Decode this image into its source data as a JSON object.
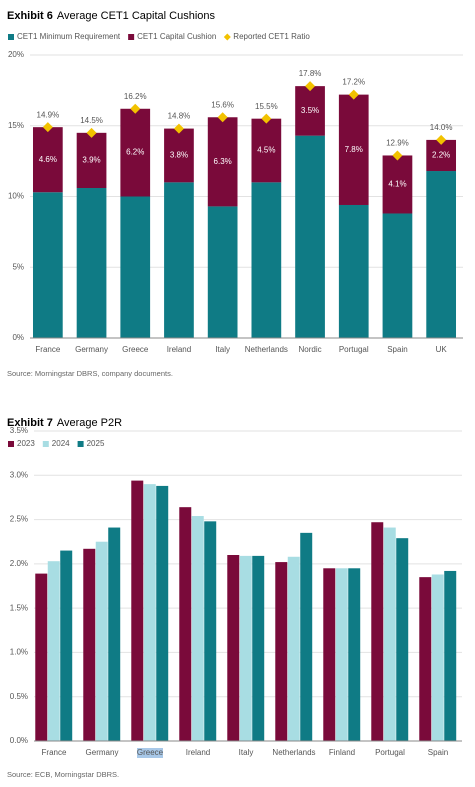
{
  "chart_data": [
    {
      "type": "bar",
      "stacked": true,
      "title_label": "Exhibit 6",
      "title": "Average CET1 Capital Cushions",
      "source": "Source: Morningstar DBRS, company documents.",
      "categories": [
        "France",
        "Germany",
        "Greece",
        "Ireland",
        "Italy",
        "Netherlands",
        "Nordic",
        "Portugal",
        "Spain",
        "UK"
      ],
      "series": [
        {
          "name": "CET1 Minimum Requirement",
          "color": "#0f7b85",
          "values": [
            10.3,
            10.6,
            10.0,
            11.0,
            9.3,
            11.0,
            14.3,
            9.4,
            8.8,
            11.8
          ]
        },
        {
          "name": "CET1 Capital Cushion",
          "color": "#7a0a3a",
          "values": [
            4.6,
            3.9,
            6.2,
            3.8,
            6.3,
            4.5,
            3.5,
            7.8,
            4.1,
            2.2
          ],
          "value_labels": [
            "4.6%",
            "3.9%",
            "6.2%",
            "3.8%",
            "6.3%",
            "4.5%",
            "3.5%",
            "7.8%",
            "4.1%",
            "2.2%"
          ]
        },
        {
          "name": "Reported CET1 Ratio",
          "type": "marker",
          "color": "#f2c200",
          "values": [
            14.9,
            14.5,
            16.2,
            14.8,
            15.6,
            15.5,
            17.8,
            17.2,
            12.9,
            14.0
          ],
          "value_labels": [
            "14.9%",
            "14.5%",
            "16.2%",
            "14.8%",
            "15.6%",
            "15.5%",
            "17.8%",
            "17.2%",
            "12.9%",
            "14.0%"
          ]
        }
      ],
      "ylim": [
        0,
        20
      ],
      "yticks": [
        {
          "value": 0,
          "label": "0%"
        },
        {
          "value": 5,
          "label": "5%"
        },
        {
          "value": 10,
          "label": "10%"
        },
        {
          "value": 15,
          "label": "15%"
        },
        {
          "value": 20,
          "label": "20%"
        }
      ],
      "grid": true
    },
    {
      "type": "bar",
      "stacked": false,
      "title_label": "Exhibit 7",
      "title": "Average P2R",
      "source": "Source: ECB, Morningstar DBRS.",
      "categories": [
        "France",
        "Germany",
        "Greece",
        "Ireland",
        "Italy",
        "Netherlands",
        "Finland",
        "Portugal",
        "Spain"
      ],
      "series": [
        {
          "name": "2023",
          "color": "#7a0a3a",
          "values": [
            1.89,
            2.17,
            2.94,
            2.64,
            2.1,
            2.02,
            1.95,
            2.47,
            1.85
          ]
        },
        {
          "name": "2024",
          "color": "#a8dde3",
          "values": [
            2.03,
            2.25,
            2.9,
            2.54,
            2.09,
            2.08,
            1.95,
            2.41,
            1.88
          ]
        },
        {
          "name": "2025",
          "color": "#0f7b85",
          "values": [
            2.15,
            2.41,
            2.88,
            2.48,
            2.09,
            2.35,
            1.95,
            2.29,
            1.92
          ]
        }
      ],
      "ylim": [
        0,
        3.5
      ],
      "yticks": [
        {
          "value": 0,
          "label": "0.0%"
        },
        {
          "value": 0.5,
          "label": "0.5%"
        },
        {
          "value": 1,
          "label": "1.0%"
        },
        {
          "value": 1.5,
          "label": "1.5%"
        },
        {
          "value": 2,
          "label": "2.0%"
        },
        {
          "value": 2.5,
          "label": "2.5%"
        },
        {
          "value": 3,
          "label": "3.0%"
        },
        {
          "value": 3.5,
          "label": "3.5%"
        }
      ],
      "grid": true
    }
  ]
}
